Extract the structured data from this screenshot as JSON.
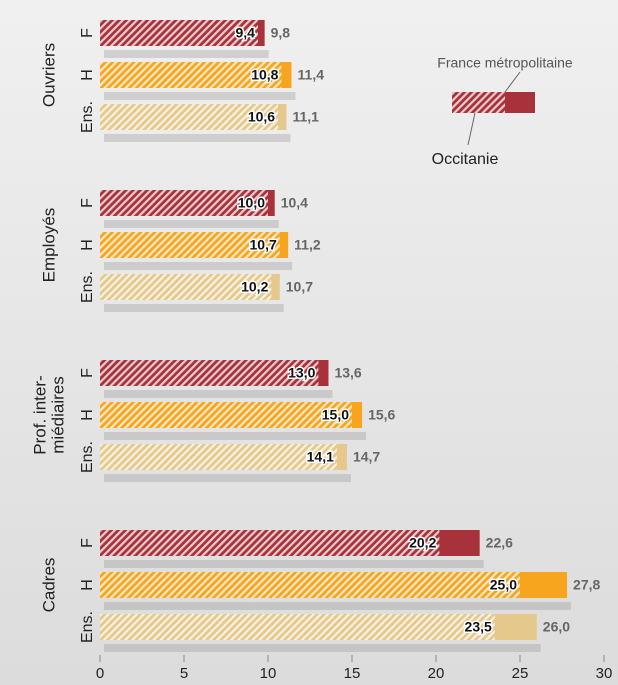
{
  "chart_data": {
    "type": "bar",
    "orientation": "horizontal",
    "groups": [
      {
        "label_lines": [
          "Ouvriers"
        ],
        "categories": [
          "F",
          "H",
          "Ens."
        ]
      },
      {
        "label_lines": [
          "Employés"
        ],
        "categories": [
          "F",
          "H",
          "Ens."
        ]
      },
      {
        "label_lines": [
          "Prof. inter-",
          "miédiaires"
        ],
        "categories": [
          "F",
          "H",
          "Ens."
        ]
      },
      {
        "label_lines": [
          "Cadres"
        ],
        "categories": [
          "F",
          "H",
          "Ens."
        ]
      }
    ],
    "category_colors": [
      "#a7323b",
      "#f7a51e",
      "#e5c98c"
    ],
    "series": [
      {
        "name": "Occitanie",
        "pattern": "hatched",
        "values": [
          9.4,
          10.8,
          10.6,
          10.0,
          10.7,
          10.2,
          13.0,
          15.0,
          14.1,
          20.2,
          25.0,
          23.5
        ],
        "value_labels": [
          "9,4",
          "10,8",
          "10,6",
          "10,0",
          "10,7",
          "10,2",
          "13,0",
          "15,0",
          "14,1",
          "20,2",
          "25,0",
          "23,5"
        ]
      },
      {
        "name": "France métropolitaine",
        "pattern": "solid",
        "values": [
          9.8,
          11.4,
          11.1,
          10.4,
          11.2,
          10.7,
          13.6,
          15.6,
          14.7,
          22.6,
          27.8,
          26.0
        ],
        "value_labels": [
          "9,8",
          "11,4",
          "11,1",
          "10,4",
          "11,2",
          "10,7",
          "13,6",
          "15,6",
          "14,7",
          "22,6",
          "27,8",
          "26,0"
        ]
      }
    ],
    "xlim": [
      0,
      30
    ],
    "xticks": [
      0,
      5,
      10,
      15,
      20,
      25,
      30
    ],
    "grid": false,
    "legend": "top-right"
  }
}
